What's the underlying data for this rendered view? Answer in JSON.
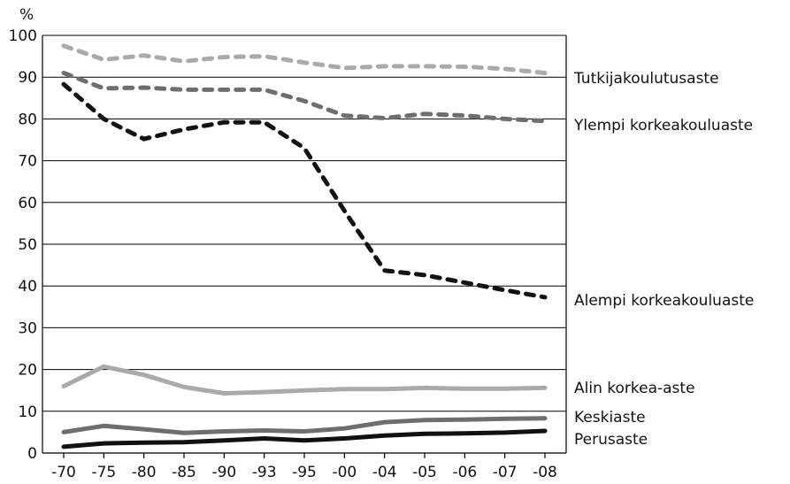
{
  "chart_data": {
    "type": "line",
    "ylabel": "%",
    "xlabel": "",
    "title": "",
    "ylim": [
      0,
      100
    ],
    "y_ticks": [
      0,
      10,
      20,
      30,
      40,
      50,
      60,
      70,
      80,
      90,
      100
    ],
    "grid": "horizontal",
    "legend": "right, inline labels at line ends",
    "categories": [
      "-70",
      "-75",
      "-80",
      "-85",
      "-90",
      "-93",
      "-95",
      "-00",
      "-04",
      "-05",
      "-06",
      "-07",
      "-08"
    ],
    "series": [
      {
        "name": "Tutkijakoulutusaste",
        "color": "#aaaaaa",
        "style": "dashed",
        "values": [
          97.5,
          94.2,
          95.2,
          93.8,
          94.8,
          95.0,
          93.5,
          92.2,
          92.6,
          92.6,
          92.5,
          92.0,
          91.0
        ]
      },
      {
        "name": "Ylempi korkeakouluaste",
        "color": "#6e6e6e",
        "style": "dashed",
        "values": [
          91.0,
          87.3,
          87.5,
          87.0,
          87.0,
          87.0,
          84.3,
          80.8,
          80.2,
          81.2,
          80.8,
          80.0,
          79.5
        ]
      },
      {
        "name": "Alempi korkeakouluaste",
        "color": "#111111",
        "style": "dashed",
        "values": [
          88.3,
          80.0,
          75.2,
          77.5,
          79.2,
          79.2,
          73.0,
          58.0,
          43.7,
          42.6,
          40.8,
          39.0,
          37.3
        ]
      },
      {
        "name": "Alin korkea-aste",
        "color": "#aaaaaa",
        "style": "solid",
        "values": [
          16.0,
          20.7,
          18.7,
          15.8,
          14.3,
          14.6,
          15.0,
          15.3,
          15.3,
          15.6,
          15.4,
          15.4,
          15.6
        ]
      },
      {
        "name": "Keskiaste",
        "color": "#6e6e6e",
        "style": "solid",
        "values": [
          5.0,
          6.5,
          5.7,
          4.8,
          5.2,
          5.4,
          5.2,
          5.9,
          7.4,
          7.9,
          8.0,
          8.2,
          8.3
        ]
      },
      {
        "name": "Perusaste",
        "color": "#111111",
        "style": "solid",
        "values": [
          1.5,
          2.3,
          2.5,
          2.6,
          3.0,
          3.5,
          3.0,
          3.5,
          4.2,
          4.6,
          4.7,
          4.9,
          5.3
        ]
      }
    ]
  }
}
